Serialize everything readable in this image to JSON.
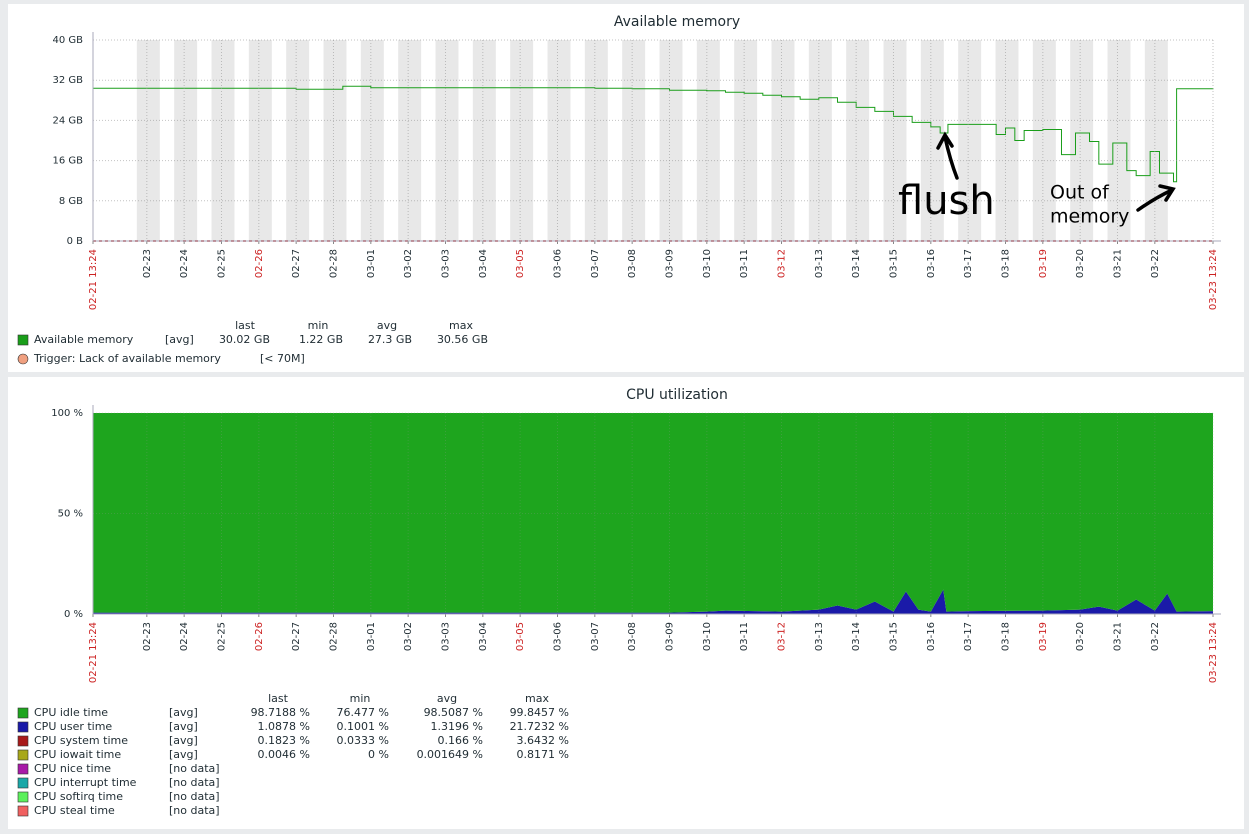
{
  "chart_data": [
    {
      "type": "line",
      "title": "Available memory",
      "xlim": [
        "02-21 13:24",
        "03-23 13:24"
      ],
      "xticks": [
        {
          "label": "02-21 13:24",
          "color": "#cc2222"
        },
        "02-23",
        "02-24",
        "02-25",
        {
          "label": "02-26",
          "color": "#cc2222"
        },
        "02-27",
        "02-28",
        "03-01",
        "03-02",
        "03-03",
        "03-04",
        {
          "label": "03-05",
          "color": "#cc2222"
        },
        "03-06",
        "03-07",
        "03-08",
        "03-09",
        "03-10",
        "03-11",
        {
          "label": "03-12",
          "color": "#cc2222"
        },
        "03-13",
        "03-14",
        "03-15",
        "03-16",
        "03-17",
        "03-18",
        {
          "label": "03-19",
          "color": "#cc2222"
        },
        "03-20",
        "03-21",
        "03-22",
        {
          "label": "03-23 13:24",
          "color": "#cc2222"
        }
      ],
      "ylim": [
        0,
        40
      ],
      "yticks": [
        {
          "value": 0,
          "label": "0 B"
        },
        {
          "value": 8,
          "label": "8 GB"
        },
        {
          "value": 16,
          "label": "16 GB"
        },
        {
          "value": 24,
          "label": "24 GB"
        },
        {
          "value": 32,
          "label": "32 GB"
        },
        {
          "value": 40,
          "label": "40 GB"
        }
      ],
      "grid": true,
      "x": [
        "02-21 13:24",
        "02-24 00:00",
        "02-26 12:00",
        "02-27 00:00",
        "02-28 00:00",
        "02-28 06:00",
        "03-01 00:00",
        "03-07 00:00",
        "03-08 00:00",
        "03-09 00:00",
        "03-10 00:00",
        "03-10 12:00",
        "03-11 00:00",
        "03-11 12:00",
        "03-12 00:00",
        "03-12 12:00",
        "03-13 00:00",
        "03-13 12:00",
        "03-14 00:00",
        "03-14 12:00",
        "03-15 00:00",
        "03-15 12:00",
        "03-16 00:00",
        "03-16 06:00",
        "03-16 11:00",
        "03-17 12:00",
        "03-17 18:00",
        "03-18 00:00",
        "03-18 06:00",
        "03-18 12:00",
        "03-19 00:00",
        "03-19 12:00",
        "03-19 21:00",
        "03-20 06:00",
        "03-20 12:00",
        "03-20 21:00",
        "03-21 06:00",
        "03-21 12:00",
        "03-21 21:00",
        "03-22 03:00",
        "03-22 12:00",
        "03-22 14:00",
        "03-23 13:24"
      ],
      "legend_columns": [
        "last",
        "min",
        "avg",
        "max"
      ],
      "series": [
        {
          "name": "Available memory",
          "color": "#1a9e1a",
          "function": "[avg]",
          "last": "30.02 GB",
          "min": "1.22 GB",
          "avg": "27.3 GB",
          "max": "30.56 GB",
          "values": [
            30.4,
            30.4,
            30.4,
            30.2,
            30.2,
            30.8,
            30.5,
            30.4,
            30.3,
            30.0,
            29.9,
            29.6,
            29.4,
            29.0,
            28.7,
            28.2,
            28.5,
            27.6,
            26.6,
            25.8,
            24.8,
            23.6,
            22.7,
            21.5,
            23.2,
            23.2,
            21.2,
            22.5,
            20.0,
            22.0,
            22.2,
            17.2,
            21.5,
            19.8,
            15.3,
            19.5,
            14.0,
            13.0,
            17.8,
            13.5,
            11.8,
            30.3,
            30.2
          ]
        }
      ],
      "triggers": [
        {
          "name": "Trigger: Lack of available memory",
          "color": "#f0a080",
          "condition": "[< 70M]"
        }
      ],
      "annotations": [
        {
          "lines": [
            "flush"
          ]
        },
        {
          "lines": [
            "Out of",
            "memory"
          ]
        }
      ]
    },
    {
      "type": "area",
      "title": "CPU utilization",
      "xlim": [
        "02-21 13:24",
        "03-23 13:24"
      ],
      "xticks": [
        {
          "label": "02-21 13:24",
          "color": "#cc2222"
        },
        "02-23",
        "02-24",
        "02-25",
        {
          "label": "02-26",
          "color": "#cc2222"
        },
        "02-27",
        "02-28",
        "03-01",
        "03-02",
        "03-03",
        "03-04",
        {
          "label": "03-05",
          "color": "#cc2222"
        },
        "03-06",
        "03-07",
        "03-08",
        "03-09",
        "03-10",
        "03-11",
        {
          "label": "03-12",
          "color": "#cc2222"
        },
        "03-13",
        "03-14",
        "03-15",
        "03-16",
        "03-17",
        "03-18",
        {
          "label": "03-19",
          "color": "#cc2222"
        },
        "03-20",
        "03-21",
        "03-22",
        {
          "label": "03-23 13:24",
          "color": "#cc2222"
        }
      ],
      "ylim": [
        0,
        100
      ],
      "yticks": [
        {
          "value": 0,
          "label": "0 %"
        },
        {
          "value": 50,
          "label": "50 %"
        },
        {
          "value": 100,
          "label": "100 %"
        }
      ],
      "grid": true,
      "x": [
        "02-21 13:24",
        "03-09 00:00",
        "03-10 00:00",
        "03-10 12:00",
        "03-12 00:00",
        "03-12 12:00",
        "03-13 00:00",
        "03-13 12:00",
        "03-14 00:00",
        "03-14 12:00",
        "03-15 00:00",
        "03-15 08:00",
        "03-15 16:00",
        "03-16 00:00",
        "03-16 08:00",
        "03-16 10:00",
        "03-17 00:00",
        "03-19 00:00",
        "03-20 00:00",
        "03-20 12:00",
        "03-21 00:00",
        "03-21 12:00",
        "03-22 00:00",
        "03-22 08:00",
        "03-22 14:00",
        "03-23 13:24"
      ],
      "legend_columns": [
        "last",
        "min",
        "avg",
        "max"
      ],
      "series": [
        {
          "name": "CPU idle time",
          "color": "#1ea51e",
          "function": "[avg]",
          "last": "98.7188 %",
          "min": "76.477 %",
          "avg": "98.5087 %",
          "max": "99.8457 %",
          "values": [
            99.3,
            99.3,
            98.8,
            98.3,
            98.8,
            98.3,
            97.8,
            95.8,
            97.8,
            93.8,
            98.8,
            88.8,
            97.8,
            98.8,
            87.8,
            98.8,
            98.6,
            98.3,
            97.8,
            96.3,
            98.3,
            92.8,
            98.3,
            89.8,
            98.8,
            98.6
          ]
        },
        {
          "name": "CPU user time",
          "color": "#1a1aa8",
          "function": "[avg]",
          "last": "1.0878 %",
          "min": "0.1001 %",
          "avg": "1.3196 %",
          "max": "21.7232 %",
          "values": [
            0.5,
            0.5,
            1,
            1.5,
            1,
            1.5,
            2,
            4,
            2,
            6,
            1,
            11,
            2,
            1,
            12,
            1,
            1.2,
            1.5,
            2,
            3.5,
            1.5,
            7,
            1.5,
            10,
            1,
            1.2
          ]
        },
        {
          "name": "CPU system time",
          "color": "#a81a1a",
          "function": "[avg]",
          "last": "0.1823 %",
          "min": "0.0333 %",
          "avg": "0.166 %",
          "max": "3.6432 %",
          "values": [
            0.2,
            0.2,
            0.2,
            0.2,
            0.2,
            0.2,
            0.2,
            0.2,
            0.2,
            0.2,
            0.2,
            0.2,
            0.2,
            0.2,
            0.2,
            0.2,
            0.2,
            0.2,
            0.2,
            0.2,
            0.2,
            0.2,
            0.2,
            0.2,
            0.2,
            0.2
          ]
        },
        {
          "name": "CPU iowait time",
          "color": "#a8a81a",
          "function": "[avg]",
          "last": "0.0046 %",
          "min": "0 %",
          "avg": "0.001649 %",
          "max": "0.8171 %",
          "values": [
            0,
            0,
            0,
            0,
            0,
            0,
            0,
            0,
            0,
            0,
            0,
            0,
            0,
            0,
            0,
            0,
            0,
            0,
            0,
            0,
            0,
            0,
            0,
            0,
            0,
            0
          ]
        },
        {
          "name": "CPU nice time",
          "color": "#a81aa8",
          "function": "[no data]"
        },
        {
          "name": "CPU interrupt time",
          "color": "#1aa8a8",
          "function": "[no data]"
        },
        {
          "name": "CPU softirq time",
          "color": "#5cf05c",
          "function": "[no data]"
        },
        {
          "name": "CPU steal time",
          "color": "#f06060",
          "function": "[no data]"
        }
      ]
    }
  ]
}
